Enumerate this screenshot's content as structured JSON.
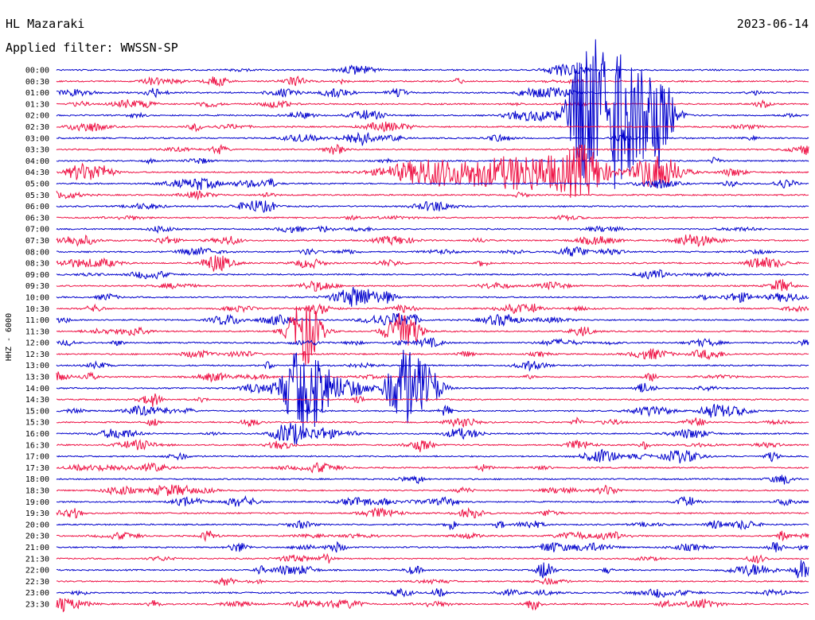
{
  "header": {
    "station": "HL Mazaraki",
    "date": "2023-06-14",
    "filter": "Applied filter: WWSSN-SP"
  },
  "chart_data": {
    "type": "line",
    "title": "HL Mazaraki",
    "ylabel": "HHZ - 6000",
    "row_labels": [
      "00:00",
      "00:30",
      "01:00",
      "01:30",
      "02:00",
      "02:30",
      "03:00",
      "03:30",
      "04:00",
      "04:30",
      "05:00",
      "05:30",
      "06:00",
      "06:30",
      "07:00",
      "07:30",
      "08:00",
      "08:30",
      "09:00",
      "09:30",
      "10:00",
      "10:30",
      "11:00",
      "11:30",
      "12:00",
      "12:30",
      "13:00",
      "13:30",
      "14:00",
      "14:30",
      "15:00",
      "15:30",
      "16:00",
      "16:30",
      "17:00",
      "17:30",
      "18:00",
      "18:30",
      "19:00",
      "19:30",
      "20:00",
      "20:30",
      "21:00",
      "21:30",
      "22:00",
      "22:30",
      "23:00",
      "23:30"
    ],
    "x_minutes_per_row": 30,
    "colors": [
      "#0000cc",
      "#ee1144"
    ],
    "events": [
      {
        "row": 4,
        "t": 0.7,
        "amp": 3.0,
        "dur": 0.02
      },
      {
        "row": 4,
        "t": 0.72,
        "amp": 5.0,
        "dur": 0.03
      },
      {
        "row": 4,
        "t": 0.75,
        "amp": 3.5,
        "dur": 0.02
      },
      {
        "row": 4,
        "t": 0.78,
        "amp": 2.5,
        "dur": 0.03
      },
      {
        "row": 4,
        "t": 0.8,
        "amp": 3.0,
        "dur": 0.02
      },
      {
        "row": 9,
        "t": 0.5,
        "amp": 1.2,
        "dur": 0.06
      },
      {
        "row": 9,
        "t": 0.6,
        "amp": 1.0,
        "dur": 0.05
      },
      {
        "row": 9,
        "t": 0.65,
        "amp": 1.0,
        "dur": 0.05
      },
      {
        "row": 9,
        "t": 0.7,
        "amp": 2.0,
        "dur": 0.03
      },
      {
        "row": 9,
        "t": 0.8,
        "amp": 1.5,
        "dur": 0.03
      },
      {
        "row": 20,
        "t": 0.4,
        "amp": 0.9,
        "dur": 0.03
      },
      {
        "row": 23,
        "t": 0.33,
        "amp": 3.0,
        "dur": 0.02
      },
      {
        "row": 23,
        "t": 0.46,
        "amp": 2.0,
        "dur": 0.02
      },
      {
        "row": 28,
        "t": 0.33,
        "amp": 4.0,
        "dur": 0.03
      },
      {
        "row": 28,
        "t": 0.46,
        "amp": 3.0,
        "dur": 0.02
      },
      {
        "row": 28,
        "t": 0.49,
        "amp": 2.0,
        "dur": 0.02
      },
      {
        "row": 32,
        "t": 0.31,
        "amp": 1.0,
        "dur": 0.02
      },
      {
        "row": 44,
        "t": 0.65,
        "amp": 0.9,
        "dur": 0.01
      },
      {
        "row": 44,
        "t": 0.99,
        "amp": 0.9,
        "dur": 0.01
      }
    ]
  }
}
